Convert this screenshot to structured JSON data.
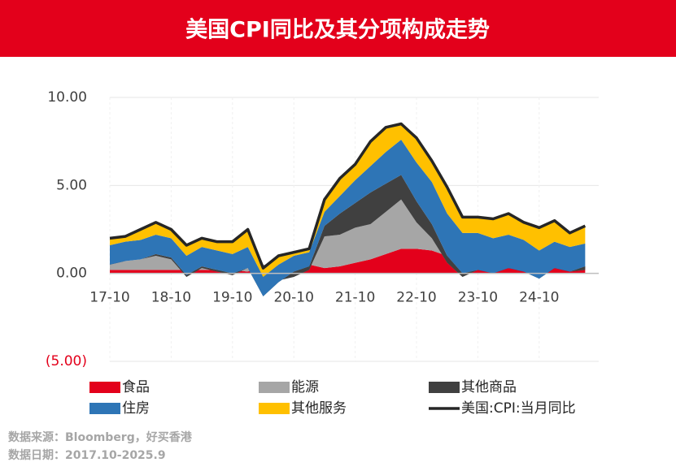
{
  "chart_data": {
    "type": "stacked-area",
    "title": "美国CPI同比及其分项构成走势",
    "categories": [
      "17-10",
      null,
      null,
      null,
      "18-10",
      null,
      null,
      null,
      "19-10",
      null,
      null,
      null,
      "20-10",
      null,
      null,
      null,
      "21-10",
      null,
      null,
      null,
      "22-10",
      null,
      null,
      null,
      "23-10",
      null,
      null,
      null,
      "24-10",
      null,
      null,
      null
    ],
    "series": [
      {
        "name": "食品",
        "color": "#e3001b",
        "kind": "area",
        "values": [
          0.2,
          0.2,
          0.2,
          0.2,
          0.2,
          0.2,
          0.2,
          0.2,
          0.2,
          0.1,
          0.5,
          0.4,
          0.5,
          0.5,
          0.3,
          0.4,
          0.6,
          0.8,
          1.1,
          1.4,
          1.4,
          1.3,
          1.0,
          0.6,
          0.4,
          0.3,
          0.3,
          0.3,
          0.3,
          0.3,
          0.4,
          0.4
        ]
      },
      {
        "name": "能源",
        "color": "#a6a6a6",
        "kind": "area",
        "values": [
          0.4,
          0.5,
          0.6,
          0.8,
          0.6,
          -0.4,
          0.1,
          -0.1,
          -0.3,
          0.2,
          -1.5,
          -0.8,
          -0.7,
          -0.3,
          1.8,
          1.8,
          2.0,
          2.0,
          2.4,
          2.8,
          1.5,
          0.7,
          -0.4,
          -0.8,
          -0.2,
          -0.2,
          0.2,
          0.1,
          -0.4,
          0.1,
          -0.3,
          -0.2
        ]
      },
      {
        "name": "其他商品",
        "color": "#404040",
        "kind": "area",
        "values": [
          -0.1,
          0.0,
          0.0,
          0.1,
          0.1,
          0.1,
          0.1,
          0.1,
          0.1,
          0.0,
          -0.3,
          -0.1,
          0.3,
          0.2,
          0.6,
          1.2,
          1.4,
          1.8,
          1.6,
          1.4,
          1.2,
          0.8,
          0.4,
          0.2,
          0.0,
          -0.1,
          -0.2,
          -0.3,
          -0.2,
          -0.1,
          0.0,
          0.2
        ]
      },
      {
        "name": "住房",
        "color": "#2e75b6",
        "kind": "area",
        "values": [
          1.1,
          1.1,
          1.1,
          1.1,
          1.1,
          1.1,
          1.1,
          1.1,
          1.1,
          1.2,
          1.1,
          1.0,
          0.9,
          0.8,
          0.8,
          1.0,
          1.3,
          1.5,
          1.8,
          2.0,
          2.2,
          2.4,
          2.4,
          2.3,
          2.1,
          2.0,
          1.9,
          1.8,
          1.6,
          1.5,
          1.4,
          1.3
        ]
      },
      {
        "name": "其他服务",
        "color": "#ffc000",
        "kind": "area",
        "values": [
          0.4,
          0.3,
          0.6,
          0.7,
          0.5,
          0.6,
          0.5,
          0.5,
          0.7,
          1.0,
          0.5,
          0.5,
          0.2,
          0.2,
          0.7,
          1.0,
          0.9,
          1.4,
          1.4,
          0.9,
          1.4,
          1.2,
          1.5,
          0.9,
          0.9,
          1.1,
          1.2,
          1.0,
          1.3,
          1.2,
          0.8,
          1.0
        ]
      },
      {
        "name": "美国:CPI:当月同比",
        "color": "#262626",
        "kind": "line",
        "values": [
          2.0,
          2.1,
          2.5,
          2.9,
          2.5,
          1.6,
          2.0,
          1.8,
          1.8,
          2.5,
          0.3,
          1.0,
          1.2,
          1.4,
          4.2,
          5.4,
          6.2,
          7.5,
          8.3,
          8.5,
          7.7,
          6.4,
          4.9,
          3.2,
          3.2,
          3.1,
          3.4,
          2.9,
          2.6,
          3.0,
          2.3,
          2.7
        ]
      }
    ],
    "ylim": [
      -5,
      10
    ],
    "yticks": [
      {
        "value": 10,
        "label": "10.00"
      },
      {
        "value": 5,
        "label": "5.00"
      },
      {
        "value": 0,
        "label": "0.00"
      },
      {
        "value": -5,
        "label": "(5.00)"
      }
    ],
    "negative_tick_color": "#e3001b",
    "grid": true
  },
  "footer": {
    "source": "数据来源：Bloomberg，好买香港",
    "date": "数据日期：2017.10-2025.9"
  }
}
